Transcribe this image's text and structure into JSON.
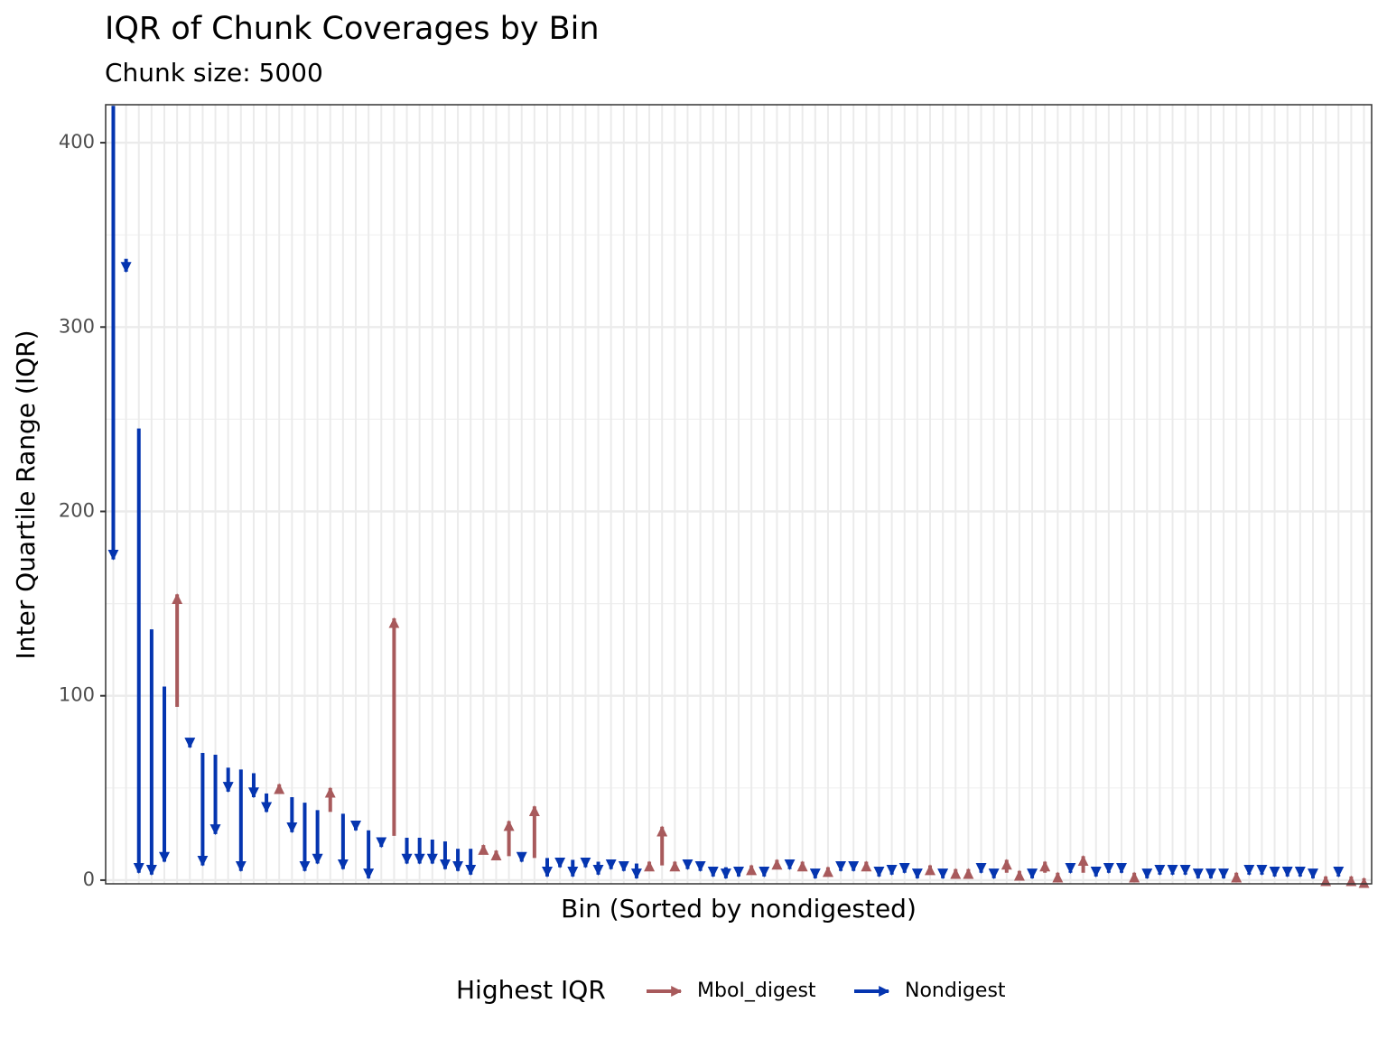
{
  "chart_data": {
    "type": "arrow",
    "title": "IQR of Chunk Coverages by Bin",
    "subtitle": "Chunk size: 5000",
    "x_label": "Bin (Sorted by nondigested)",
    "y_label": "Inter Quartile Range (IQR)",
    "start": [
      420,
      337,
      245,
      136,
      105,
      94,
      76,
      69,
      68,
      61,
      60,
      58,
      47,
      47,
      45,
      42,
      38,
      37,
      36,
      30,
      27,
      22,
      24,
      23,
      23,
      22,
      21,
      17,
      17,
      16,
      13,
      13,
      13,
      12,
      12,
      11,
      11,
      10,
      10,
      9,
      9,
      9,
      7,
      8,
      8,
      8,
      8,
      7,
      7,
      7,
      5,
      7,
      7,
      7,
      7,
      6,
      4,
      6,
      7,
      6,
      5,
      5,
      6,
      5,
      5,
      5,
      3,
      4,
      6,
      4,
      4,
      2,
      4,
      4,
      2,
      5,
      4,
      4,
      5,
      5,
      2,
      3,
      4,
      4,
      4,
      3,
      3,
      3,
      2,
      4,
      4,
      4,
      4,
      3,
      3,
      0,
      3,
      0,
      0
    ],
    "end": [
      174,
      330,
      4,
      3,
      10,
      155,
      72,
      8,
      25,
      48,
      5,
      45,
      37,
      52,
      26,
      5,
      9,
      50,
      6,
      27,
      1,
      18,
      142,
      9,
      9,
      9,
      6,
      5,
      3,
      19,
      16,
      32,
      10,
      40,
      2,
      7,
      2,
      7,
      3,
      6,
      5,
      1,
      10,
      29,
      10,
      6,
      5,
      2,
      1,
      2,
      8,
      2,
      11,
      6,
      10,
      1,
      7,
      5,
      5,
      10,
      2,
      3,
      4,
      1,
      8,
      1,
      6,
      6,
      4,
      1,
      11,
      5,
      1,
      10,
      4,
      4,
      13,
      2,
      4,
      4,
      4,
      1,
      3,
      3,
      3,
      1,
      1,
      1,
      4,
      3,
      3,
      2,
      2,
      2,
      1,
      2,
      2,
      2,
      1
    ],
    "ylim": [
      -2,
      420.6
    ],
    "yticks": [
      0,
      100,
      200,
      300,
      400
    ],
    "grid": true,
    "legend": {
      "title": "Highest IQR",
      "position": "bottom",
      "items": [
        {
          "name": "MboI_digest",
          "color": "#a85a5c"
        },
        {
          "name": "Nondigest",
          "color": "#0535b0"
        }
      ]
    }
  }
}
